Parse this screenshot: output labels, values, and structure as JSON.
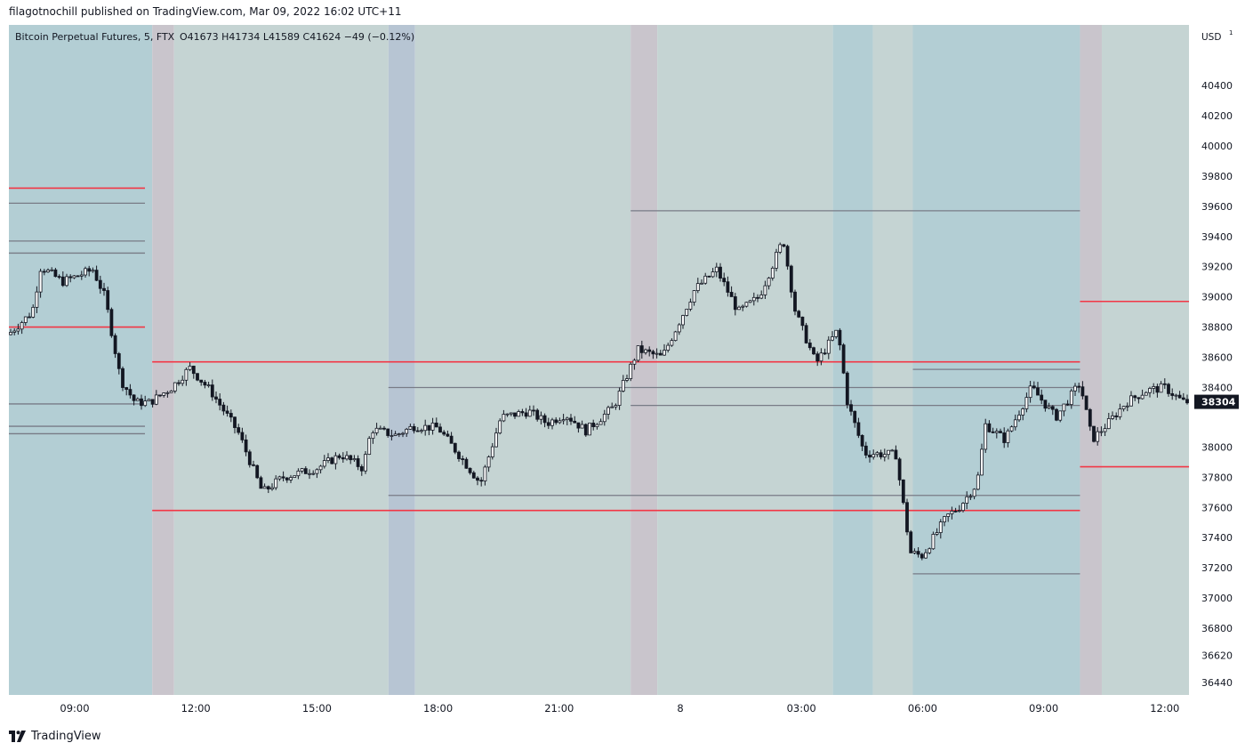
{
  "header": {
    "published_text": "filagotnochill published on TradingView.com, Mar 09, 2022 16:02 UTC+11"
  },
  "legend": {
    "symbol_text": "Bitcoin Perpetual Futures, 5, FTX",
    "ohlc_text": "O41673  H41734  L41589  C41624  −49 (−0.12%)"
  },
  "footer": {
    "brand_label": "TradingView",
    "logo_icon": "tradingview-logo-icon"
  },
  "colors": {
    "session_blue": "#b3ced4",
    "session_grey": "#c5d4d3",
    "session_purple": "#c9c5cc",
    "session_steel": "#b7c5d3",
    "level_red": "#f23645",
    "level_grey": "#787b86",
    "candle": "#131722"
  },
  "chart_data": {
    "type": "candlestick",
    "title": "Bitcoin Perpetual Futures, 5, FTX",
    "currency_label": "USD",
    "ylim": [
      36300,
      40550
    ],
    "xlim": [
      -0.55,
      9.2
    ],
    "x_ticks": [
      {
        "x": 0,
        "label": "09:00"
      },
      {
        "x": 1,
        "label": "12:00"
      },
      {
        "x": 2,
        "label": "15:00"
      },
      {
        "x": 3,
        "label": "18:00"
      },
      {
        "x": 4,
        "label": "21:00"
      },
      {
        "x": 5,
        "label": "8"
      },
      {
        "x": 6,
        "label": "03:00"
      },
      {
        "x": 7,
        "label": "06:00"
      },
      {
        "x": 8,
        "label": "09:00"
      },
      {
        "x": 9,
        "label": "12:00"
      }
    ],
    "y_ticks": [
      40400,
      40200,
      40000,
      39800,
      39600,
      39400,
      39200,
      39000,
      38800,
      38600,
      38400,
      38000,
      37800,
      37600,
      37400,
      37200,
      37000,
      36800,
      36620,
      36440
    ],
    "last_price": 38304,
    "price_path": [
      [
        -0.55,
        38750
      ],
      [
        -0.35,
        38900
      ],
      [
        -0.28,
        39200
      ],
      [
        -0.1,
        39100
      ],
      [
        0.15,
        39180
      ],
      [
        0.25,
        39000
      ],
      [
        0.38,
        38450
      ],
      [
        0.5,
        38300
      ],
      [
        0.62,
        38300
      ],
      [
        0.8,
        38400
      ],
      [
        0.95,
        38530
      ],
      [
        1.12,
        38380
      ],
      [
        1.35,
        38100
      ],
      [
        1.55,
        37700
      ],
      [
        1.72,
        37800
      ],
      [
        2.0,
        37860
      ],
      [
        2.2,
        37950
      ],
      [
        2.38,
        37860
      ],
      [
        2.45,
        38120
      ],
      [
        2.65,
        38080
      ],
      [
        2.8,
        38140
      ],
      [
        3.0,
        38130
      ],
      [
        3.2,
        37920
      ],
      [
        3.35,
        37760
      ],
      [
        3.52,
        38200
      ],
      [
        3.75,
        38240
      ],
      [
        3.9,
        38160
      ],
      [
        4.05,
        38220
      ],
      [
        4.22,
        38110
      ],
      [
        4.45,
        38270
      ],
      [
        4.65,
        38650
      ],
      [
        4.85,
        38600
      ],
      [
        5.0,
        38850
      ],
      [
        5.12,
        39050
      ],
      [
        5.3,
        39180
      ],
      [
        5.48,
        38900
      ],
      [
        5.65,
        39000
      ],
      [
        5.85,
        39380
      ],
      [
        5.95,
        38900
      ],
      [
        6.12,
        38560
      ],
      [
        6.3,
        38780
      ],
      [
        6.38,
        38300
      ],
      [
        6.52,
        37960
      ],
      [
        6.78,
        37950
      ],
      [
        6.9,
        37300
      ],
      [
        7.0,
        37280
      ],
      [
        7.2,
        37540
      ],
      [
        7.3,
        37600
      ],
      [
        7.45,
        37760
      ],
      [
        7.52,
        38150
      ],
      [
        7.68,
        38050
      ],
      [
        7.9,
        38400
      ],
      [
        8.1,
        38200
      ],
      [
        8.3,
        38430
      ],
      [
        8.4,
        38050
      ],
      [
        8.52,
        38150
      ],
      [
        8.68,
        38300
      ],
      [
        8.85,
        38380
      ],
      [
        9.0,
        38400
      ],
      [
        9.15,
        38304
      ]
    ],
    "session_bands": [
      {
        "from": -0.55,
        "to": 0.64,
        "kind": "blue"
      },
      {
        "from": 0.64,
        "to": 0.82,
        "kind": "purple"
      },
      {
        "from": 0.82,
        "to": 2.59,
        "kind": "grey"
      },
      {
        "from": 2.59,
        "to": 2.81,
        "kind": "steel"
      },
      {
        "from": 2.81,
        "to": 4.59,
        "kind": "grey"
      },
      {
        "from": 4.59,
        "to": 4.81,
        "kind": "purple"
      },
      {
        "from": 4.81,
        "to": 6.26,
        "kind": "grey"
      },
      {
        "from": 6.26,
        "to": 6.59,
        "kind": "blue"
      },
      {
        "from": 6.59,
        "to": 6.92,
        "kind": "grey"
      },
      {
        "from": 6.92,
        "to": 8.3,
        "kind": "blue"
      },
      {
        "from": 8.3,
        "to": 8.48,
        "kind": "purple"
      },
      {
        "from": 8.48,
        "to": 9.2,
        "kind": "grey"
      }
    ],
    "levels": [
      {
        "price": 39720,
        "from": -0.55,
        "to": 0.58,
        "kind": "red"
      },
      {
        "price": 39620,
        "from": -0.55,
        "to": 0.58,
        "kind": "grey"
      },
      {
        "price": 39370,
        "from": -0.55,
        "to": 0.58,
        "kind": "grey"
      },
      {
        "price": 39290,
        "from": -0.55,
        "to": 0.58,
        "kind": "grey"
      },
      {
        "price": 38800,
        "from": -0.55,
        "to": 0.58,
        "kind": "red"
      },
      {
        "price": 38290,
        "from": -0.55,
        "to": 0.58,
        "kind": "grey"
      },
      {
        "price": 38140,
        "from": -0.55,
        "to": 0.58,
        "kind": "grey"
      },
      {
        "price": 38090,
        "from": -0.55,
        "to": 0.58,
        "kind": "grey"
      },
      {
        "price": 38570,
        "from": 0.64,
        "to": 6.92,
        "kind": "red"
      },
      {
        "price": 37580,
        "from": 0.64,
        "to": 6.92,
        "kind": "red"
      },
      {
        "price": 38400,
        "from": 2.59,
        "to": 6.92,
        "kind": "grey"
      },
      {
        "price": 37680,
        "from": 2.59,
        "to": 6.92,
        "kind": "grey"
      },
      {
        "price": 39570,
        "from": 4.59,
        "to": 8.3,
        "kind": "grey"
      },
      {
        "price": 38280,
        "from": 4.59,
        "to": 8.3,
        "kind": "grey"
      },
      {
        "price": 38570,
        "from": 6.92,
        "to": 8.3,
        "kind": "red"
      },
      {
        "price": 38520,
        "from": 6.92,
        "to": 8.3,
        "kind": "grey"
      },
      {
        "price": 38400,
        "from": 6.92,
        "to": 8.3,
        "kind": "grey"
      },
      {
        "price": 37680,
        "from": 6.92,
        "to": 8.3,
        "kind": "grey"
      },
      {
        "price": 37580,
        "from": 6.92,
        "to": 8.3,
        "kind": "red"
      },
      {
        "price": 37160,
        "from": 6.92,
        "to": 8.3,
        "kind": "grey"
      },
      {
        "price": 38970,
        "from": 8.3,
        "to": 9.2,
        "kind": "red"
      },
      {
        "price": 37870,
        "from": 8.3,
        "to": 9.2,
        "kind": "red"
      }
    ],
    "grid": false,
    "legend_position": "top-left"
  }
}
